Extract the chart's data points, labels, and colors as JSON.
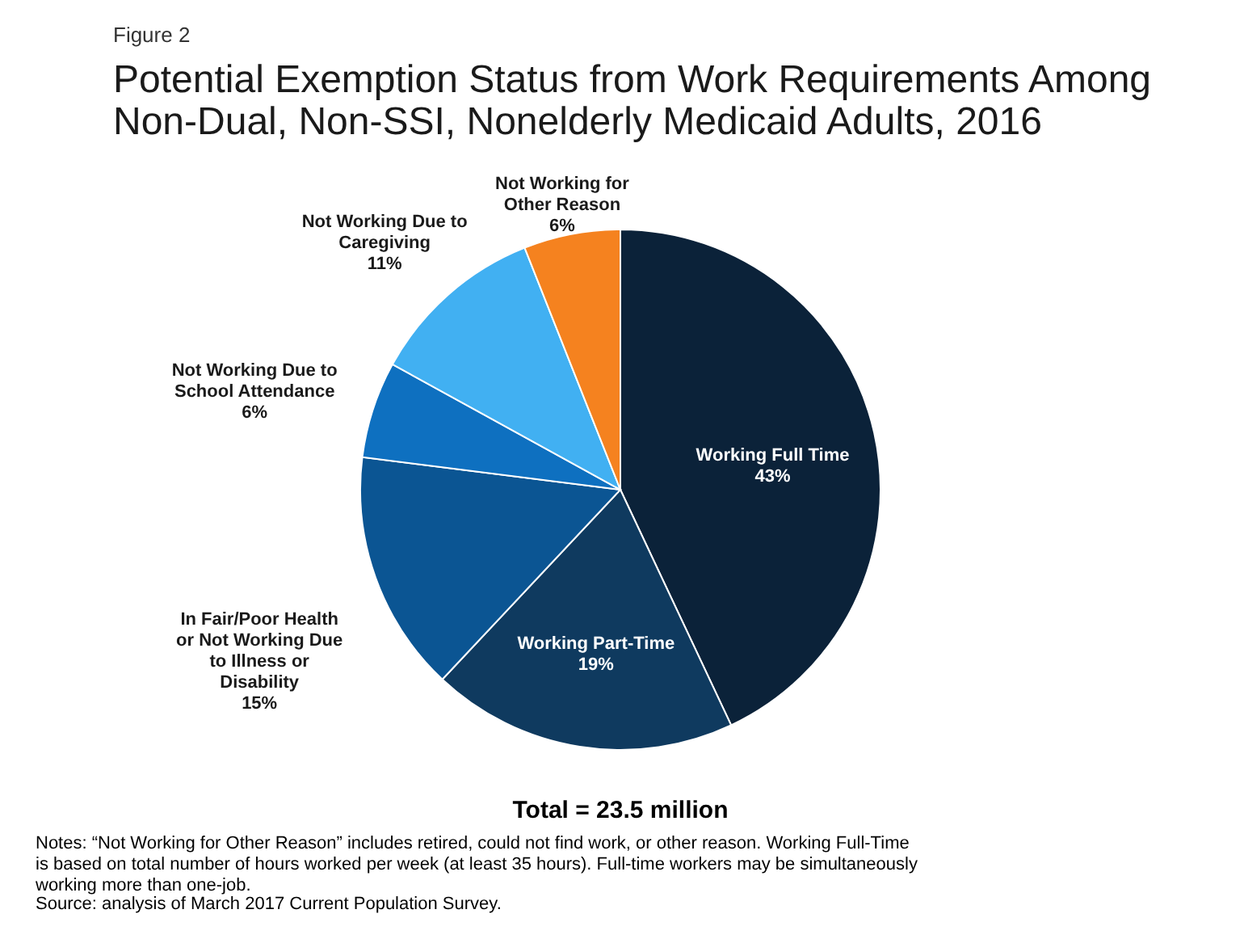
{
  "chart_data": {
    "type": "pie",
    "title": "Potential Exemption Status from Work Requirements Among Non-Dual, Non-SSI, Nonelderly Medicaid Adults, 2016",
    "categories": [
      "Working Full Time",
      "Working Part-Time",
      "In Fair/Poor Health or Not Working Due to Illness or Disability",
      "Not Working Due to School Attendance",
      "Not Working Due to Caregiving",
      "Not Working for Other Reason"
    ],
    "values": [
      43,
      19,
      15,
      6,
      11,
      6
    ],
    "value_labels": [
      "43%",
      "19%",
      "15%",
      "6%",
      "11%",
      "6%"
    ],
    "legend": false,
    "colors": [
      "#0b2239",
      "#0f3a5f",
      "#0b5593",
      "#0e70c0",
      "#41b0f2",
      "#f5821f"
    ],
    "annotations": [
      "Figure 2",
      "Total = 23.5 million",
      "Notes: “Not Working for Other Reason” includes retired, could not find work, or other reason. Working Full-Time is based on total number of hours worked per week (at least 35 hours). Full-time workers may be simultaneously working more than one-job.",
      "Source: analysis of March 2017 Current Population Survey."
    ]
  }
}
